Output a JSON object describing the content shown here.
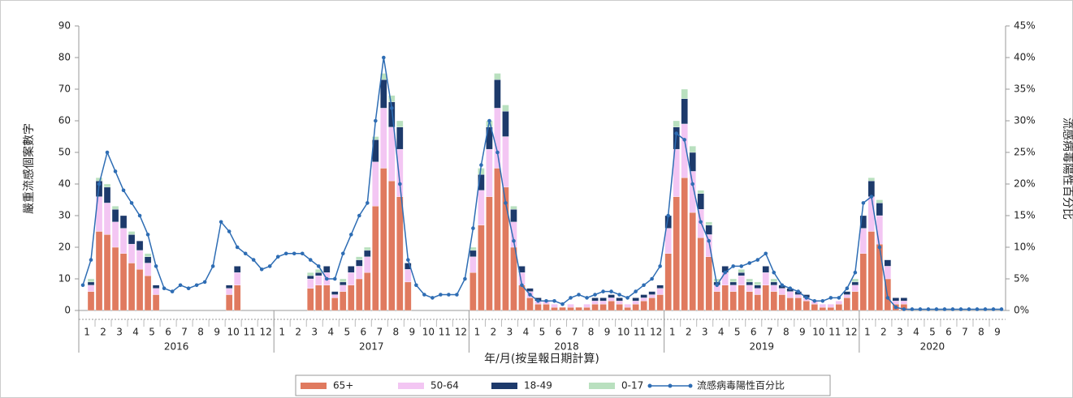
{
  "chart_data": {
    "type": "bar",
    "y_label": "嚴重流感個案數字",
    "y2_label": "流感病毒陽性百分比",
    "x_label": "年/月(按呈報日期計算)",
    "categories": [
      "1",
      null,
      "2",
      null,
      "3",
      null,
      "4",
      null,
      "5",
      null,
      "6",
      null,
      "7",
      null,
      "8",
      null,
      "9",
      null,
      "10",
      null,
      "11",
      null,
      "12",
      null,
      "1",
      null,
      "2",
      null,
      "3",
      null,
      "4",
      null,
      "5",
      null,
      "6",
      null,
      "7",
      null,
      "8",
      null,
      "9",
      null,
      "10",
      null,
      "11",
      null,
      "12",
      null,
      "1",
      null,
      "2",
      null,
      "3",
      null,
      "4",
      null,
      "5",
      null,
      "6",
      null,
      "7",
      null,
      "8",
      null,
      "9",
      null,
      "10",
      null,
      "11",
      null,
      "12",
      null,
      "1",
      null,
      "2",
      null,
      "3",
      null,
      "4",
      null,
      "5",
      null,
      "6",
      null,
      "7",
      null,
      "8",
      null,
      "9",
      null,
      "10",
      null,
      "11",
      null,
      "12",
      null,
      "1",
      null,
      "2",
      null,
      "3",
      null,
      "4",
      null,
      "5",
      null,
      "6",
      null,
      "7",
      null,
      "8",
      null,
      "9",
      null
    ],
    "years": [
      "2016",
      "2017",
      "2018",
      "2019",
      "2020"
    ],
    "series": [
      {
        "name": "65+",
        "color": "#e07a5f",
        "values": [
          0,
          6,
          25,
          24,
          20,
          18,
          15,
          13,
          11,
          5,
          0,
          0,
          0,
          0,
          0,
          0,
          0,
          0,
          5,
          8,
          0,
          0,
          0,
          0,
          0,
          0,
          0,
          0,
          7,
          8,
          8,
          4,
          6,
          8,
          10,
          12,
          33,
          45,
          41,
          36,
          9,
          0,
          0,
          0,
          0,
          0,
          0,
          0,
          12,
          27,
          36,
          45,
          39,
          20,
          8,
          4,
          2,
          2,
          1,
          1,
          1,
          1,
          1,
          2,
          2,
          3,
          2,
          1,
          2,
          3,
          4,
          5,
          18,
          36,
          42,
          31,
          23,
          17,
          6,
          8,
          6,
          8,
          6,
          5,
          8,
          6,
          5,
          4,
          4,
          3,
          2,
          1,
          1,
          2,
          4,
          6,
          18,
          25,
          21,
          10,
          2,
          2,
          0,
          0,
          0,
          0,
          0,
          0,
          0,
          0,
          0,
          0,
          0,
          0
        ]
      },
      {
        "name": "50-64",
        "color": "#f3c6f3",
        "values": [
          0,
          2,
          11,
          10,
          8,
          8,
          6,
          6,
          4,
          2,
          0,
          0,
          0,
          0,
          0,
          0,
          0,
          0,
          2,
          4,
          0,
          0,
          0,
          0,
          0,
          0,
          0,
          0,
          3,
          3,
          4,
          1,
          2,
          4,
          4,
          5,
          14,
          19,
          17,
          15,
          4,
          0,
          0,
          0,
          0,
          0,
          0,
          0,
          5,
          11,
          15,
          19,
          16,
          8,
          4,
          2,
          1,
          1,
          1,
          0,
          1,
          0,
          1,
          1,
          1,
          1,
          1,
          1,
          1,
          1,
          1,
          2,
          8,
          15,
          17,
          13,
          9,
          7,
          2,
          4,
          2,
          3,
          2,
          2,
          4,
          2,
          2,
          2,
          1,
          1,
          1,
          1,
          1,
          1,
          1,
          2,
          8,
          11,
          9,
          4,
          1,
          1,
          0,
          0,
          0,
          0,
          0,
          0,
          0,
          0,
          0,
          0,
          0,
          0
        ]
      },
      {
        "name": "18-49",
        "color": "#1d3a6b",
        "values": [
          0,
          1,
          5,
          5,
          4,
          4,
          3,
          3,
          2,
          1,
          0,
          0,
          0,
          0,
          0,
          0,
          0,
          0,
          1,
          2,
          0,
          0,
          0,
          0,
          0,
          0,
          0,
          0,
          1,
          1,
          2,
          1,
          1,
          2,
          2,
          2,
          7,
          9,
          8,
          7,
          2,
          0,
          0,
          0,
          0,
          0,
          0,
          0,
          2,
          5,
          7,
          9,
          8,
          4,
          2,
          1,
          1,
          0,
          0,
          0,
          0,
          0,
          0,
          1,
          1,
          1,
          1,
          0,
          1,
          1,
          1,
          1,
          4,
          7,
          8,
          6,
          5,
          3,
          1,
          2,
          1,
          1,
          1,
          1,
          2,
          1,
          1,
          1,
          1,
          1,
          0,
          0,
          0,
          0,
          1,
          1,
          4,
          5,
          4,
          2,
          1,
          1,
          0,
          0,
          0,
          0,
          0,
          0,
          0,
          0,
          0,
          0,
          0,
          0
        ]
      },
      {
        "name": "0-17",
        "color": "#b9e0bf",
        "values": [
          0,
          1,
          1,
          1,
          1,
          0,
          1,
          0,
          1,
          0,
          0,
          0,
          0,
          0,
          0,
          0,
          0,
          0,
          0,
          0,
          0,
          0,
          0,
          0,
          0,
          0,
          0,
          0,
          1,
          1,
          0,
          0,
          1,
          0,
          1,
          1,
          1,
          2,
          2,
          2,
          0,
          0,
          0,
          0,
          0,
          0,
          0,
          0,
          1,
          2,
          2,
          2,
          2,
          1,
          0,
          0,
          0,
          0,
          0,
          0,
          0,
          0,
          0,
          0,
          0,
          0,
          0,
          0,
          0,
          0,
          0,
          0,
          0,
          2,
          3,
          2,
          1,
          1,
          1,
          0,
          1,
          1,
          1,
          1,
          0,
          1,
          0,
          0,
          0,
          0,
          0,
          0,
          0,
          0,
          0,
          1,
          0,
          1,
          1,
          0,
          0,
          0,
          0,
          0,
          0,
          0,
          0,
          0,
          0,
          0,
          0,
          0,
          0,
          0
        ]
      },
      {
        "name": "流感病毒陽性百分比",
        "type": "line",
        "axis": "y2",
        "color": "#2e6db4",
        "values": [
          4,
          8,
          20,
          25,
          22,
          19,
          17,
          15,
          12,
          7,
          3.5,
          3,
          4,
          3.5,
          4,
          4.5,
          7,
          14,
          12.5,
          10,
          9,
          8,
          6.5,
          7,
          8.5,
          9,
          9,
          9,
          8,
          7,
          5,
          5,
          9,
          12,
          15,
          17,
          30,
          40,
          32,
          20,
          8,
          4,
          2.5,
          2,
          2.5,
          2.5,
          2.5,
          5,
          13,
          23,
          30,
          25,
          17,
          11,
          4,
          2.5,
          1.5,
          1.5,
          1.5,
          1,
          2,
          2.5,
          2,
          2.5,
          3,
          3,
          2.5,
          2,
          3,
          4,
          5,
          7,
          15,
          28,
          27,
          20,
          14,
          11,
          4,
          6,
          7,
          7,
          7.5,
          8,
          9,
          6,
          4,
          3.5,
          3,
          2,
          1.5,
          1.5,
          2,
          2,
          3.5,
          6,
          17,
          18,
          10,
          2,
          0.5,
          0.2,
          0.2,
          0.2,
          0.2,
          0.2,
          0.2,
          0.2,
          0.2,
          0.2,
          0.2,
          0.2,
          0.2,
          0.2
        ]
      }
    ],
    "ylim": [
      0,
      90
    ],
    "yticks": [
      0,
      10,
      20,
      30,
      40,
      50,
      60,
      70,
      80,
      90
    ],
    "y2lim": [
      0,
      45
    ],
    "y2ticks": [
      {
        "value": 0,
        "label": "0%"
      },
      {
        "value": 5,
        "label": "5%"
      },
      {
        "value": 10,
        "label": "10%"
      },
      {
        "value": 15,
        "label": "15%"
      },
      {
        "value": 20,
        "label": "20%"
      },
      {
        "value": 25,
        "label": "25%"
      },
      {
        "value": 30,
        "label": "30%"
      },
      {
        "value": 35,
        "label": "35%"
      },
      {
        "value": 40,
        "label": "40%"
      },
      {
        "value": 45,
        "label": "45%"
      }
    ]
  }
}
